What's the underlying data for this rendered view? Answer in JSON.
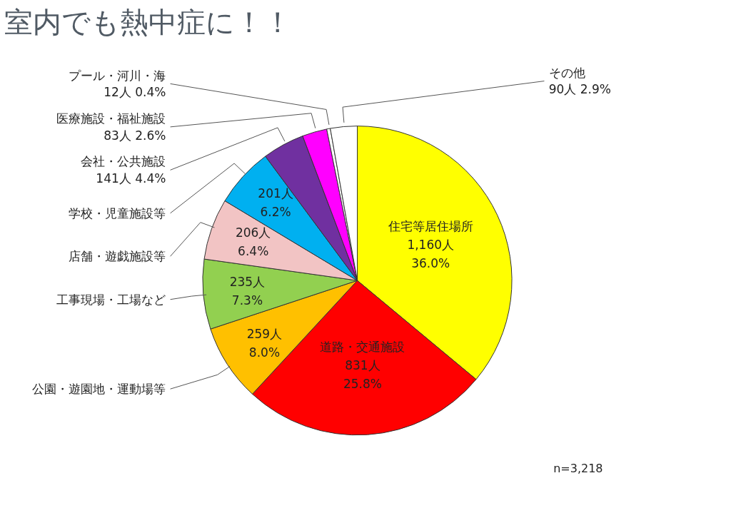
{
  "chart_data": {
    "type": "pie",
    "title": "室内でも熱中症に！！",
    "categories": [
      "住宅等居住場所",
      "道路・交通施設",
      "公園・遊園地・運動場等",
      "工事現場・工場など",
      "店舗・遊戯施設等",
      "学校・児童施設等",
      "会社・公共施設",
      "医療施設・福祉施設",
      "プール・河川・海",
      "その他"
    ],
    "values": [
      1160,
      831,
      259,
      235,
      206,
      201,
      141,
      83,
      12,
      90
    ],
    "value_labels": [
      "1,160人 36.0%",
      "831人 25.8%",
      "259人 8.0%",
      "235人 7.3%",
      "206人 6.4%",
      "201人 6.2%",
      "141人 4.4%",
      "83人 2.6%",
      "12人 0.4%",
      "90人 2.9%"
    ],
    "colors": [
      "#ffff00",
      "#ff0000",
      "#ffc000",
      "#92d050",
      "#f2c4c4",
      "#00b0f0",
      "#7030a0",
      "#ff00ff",
      "#ffffff",
      "#ffffff"
    ],
    "annotations": [
      "n=3,218"
    ]
  }
}
